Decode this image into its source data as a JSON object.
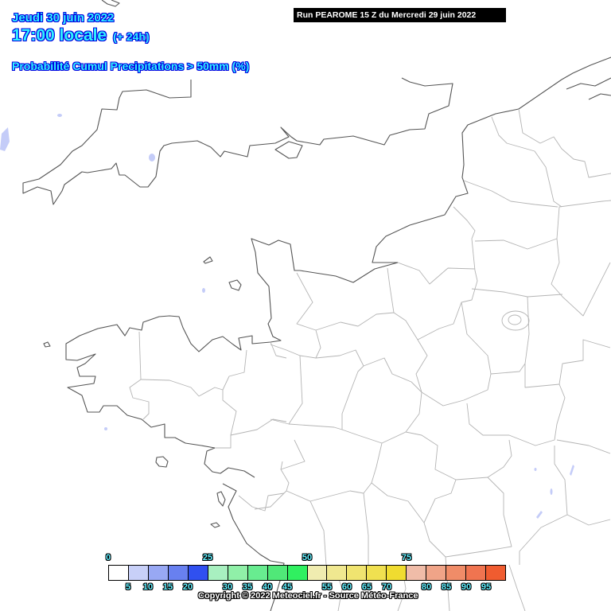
{
  "header": {
    "date": "Jeudi 30 juin 2022",
    "time": "17:00 locale",
    "lead": "(+ 24h)",
    "parameter": "Probabilité Cumul Precipitations > 50mm (%)",
    "run": "Run PEAROME 15 Z du Mercredi 29 juin 2022"
  },
  "legend": {
    "colors": [
      "#ffffff",
      "#c8d0f8",
      "#98a8f4",
      "#6880f0",
      "#3050f0",
      "#a8f0c0",
      "#90f0a8",
      "#68ec90",
      "#50e878",
      "#30f060",
      "#f0ecb0",
      "#f0e890",
      "#f0e470",
      "#f0e050",
      "#f0dc30",
      "#f0bca8",
      "#f0a488",
      "#f08c68",
      "#f07450",
      "#f05c30"
    ],
    "top_labels": [
      "0",
      "25",
      "50",
      "75"
    ],
    "bottom_labels": [
      "5",
      "10",
      "15",
      "20",
      "30",
      "35",
      "40",
      "45",
      "55",
      "60",
      "65",
      "70",
      "80",
      "85",
      "90",
      "95"
    ]
  },
  "map": {
    "region": "Nord-Ouest France / Manche",
    "coast_color": "#555555",
    "border_color": "#b4b4b4",
    "water_color": "#c4ccf8"
  },
  "footer": {
    "copyright": "Copyright © 2022 Meteociel.fr - Source Météo-France"
  }
}
